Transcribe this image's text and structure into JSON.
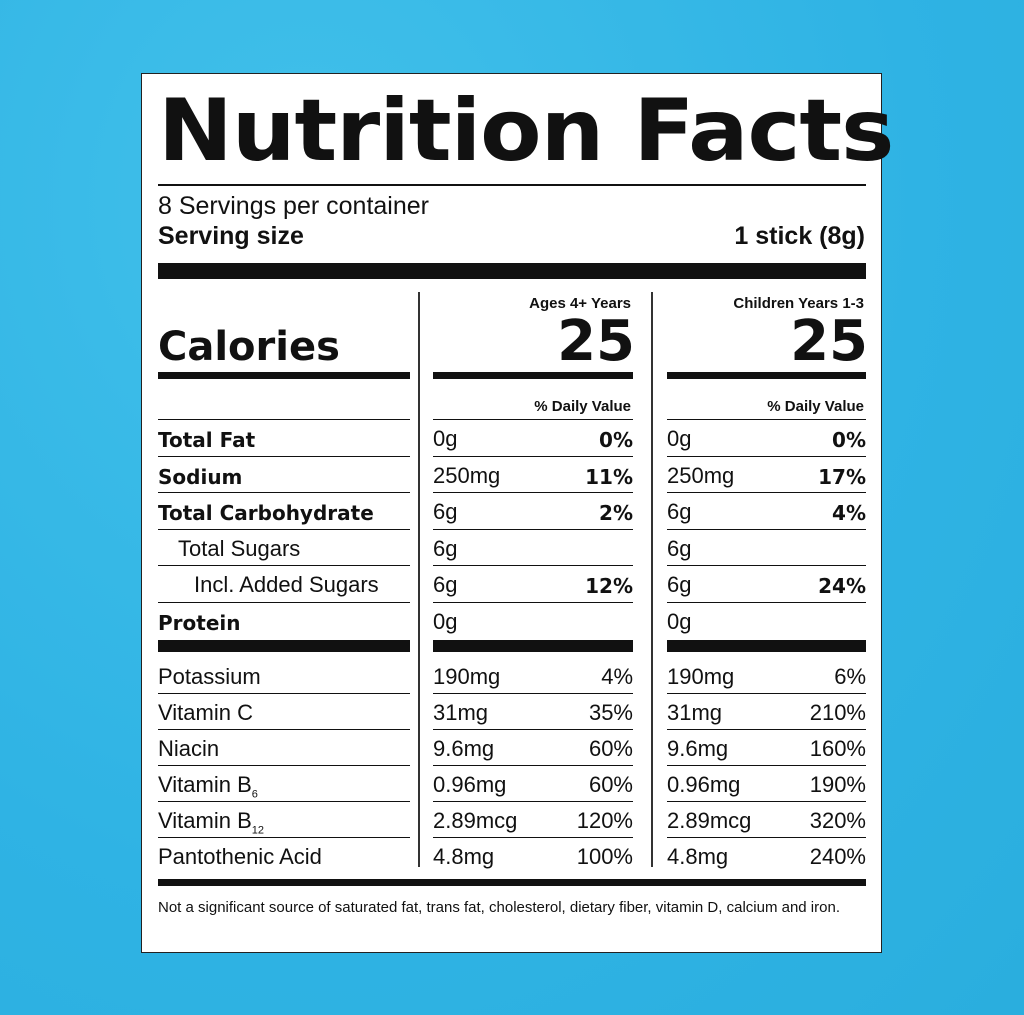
{
  "title": "Nutrition Facts",
  "servings": "8 Servings per container",
  "serving_size_label": "Serving size",
  "serving_size_value": "1 stick (8g)",
  "calories_label": "Calories",
  "columns": [
    {
      "heading": "Ages 4+ Years",
      "calories": "25",
      "dv_label": "% Daily Value"
    },
    {
      "heading": "Children Years 1-3",
      "calories": "25",
      "dv_label": "% Daily Value"
    }
  ],
  "nutrients": [
    {
      "name": "Total Fat",
      "bold": true,
      "indent": 0,
      "a": [
        "0g",
        "0%"
      ],
      "b": [
        "0g",
        "0%"
      ]
    },
    {
      "name": "Sodium",
      "bold": true,
      "indent": 0,
      "a": [
        "250mg",
        "11%"
      ],
      "b": [
        "250mg",
        "17%"
      ]
    },
    {
      "name": "Total Carbohydrate",
      "bold": true,
      "indent": 0,
      "a": [
        "6g",
        "2%"
      ],
      "b": [
        "6g",
        "4%"
      ]
    },
    {
      "name": "Total Sugars",
      "bold": false,
      "indent": 1,
      "a": [
        "6g",
        ""
      ],
      "b": [
        "6g",
        ""
      ]
    },
    {
      "name": "Incl. Added Sugars",
      "bold": false,
      "indent": 2,
      "a": [
        "6g",
        "12%"
      ],
      "pct_bold": true,
      "b": [
        "6g",
        "24%"
      ]
    },
    {
      "name": "Protein",
      "bold": true,
      "indent": 0,
      "a": [
        "0g",
        ""
      ],
      "b": [
        "0g",
        ""
      ]
    }
  ],
  "vitamins": [
    {
      "name": "Potassium",
      "sub": "",
      "a": [
        "190mg",
        "4%"
      ],
      "b": [
        "190mg",
        "6%"
      ]
    },
    {
      "name": "Vitamin C",
      "sub": "",
      "a": [
        "31mg",
        "35%"
      ],
      "b": [
        "31mg",
        "210%"
      ]
    },
    {
      "name": "Niacin",
      "sub": "",
      "a": [
        "9.6mg",
        "60%"
      ],
      "b": [
        "9.6mg",
        "160%"
      ]
    },
    {
      "name": "Vitamin B",
      "sub": "6",
      "a": [
        "0.96mg",
        "60%"
      ],
      "b": [
        "0.96mg",
        "190%"
      ]
    },
    {
      "name": "Vitamin B",
      "sub": "12",
      "a": [
        "2.89mcg",
        "120%"
      ],
      "b": [
        "2.89mcg",
        "320%"
      ]
    },
    {
      "name": "Pantothenic Acid",
      "sub": "",
      "a": [
        "4.8mg",
        "100%"
      ],
      "b": [
        "4.8mg",
        "240%"
      ]
    }
  ],
  "footnote": "Not a significant source of saturated fat, trans fat, cholesterol, dietary fiber, vitamin D, calcium and iron."
}
